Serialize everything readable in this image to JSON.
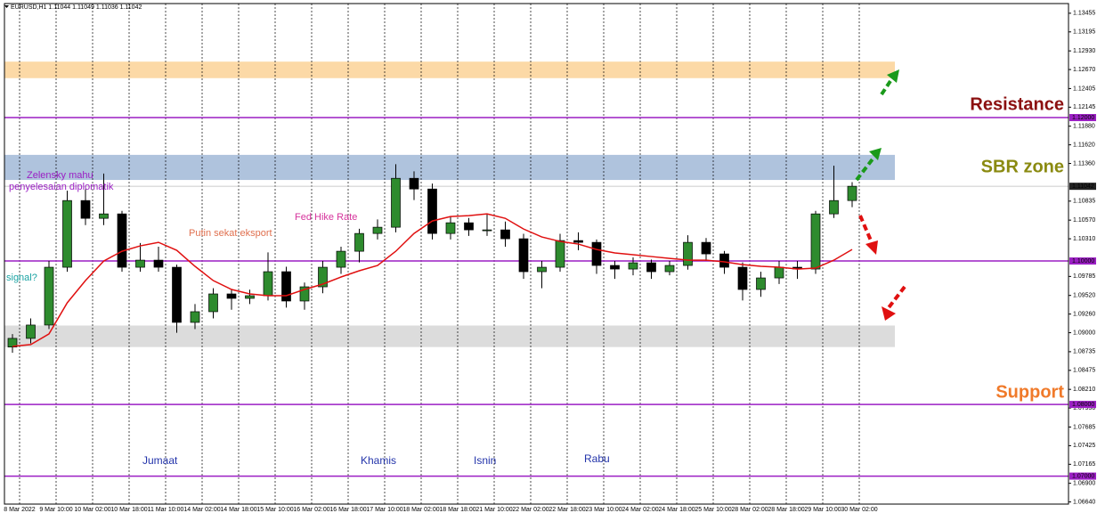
{
  "chart_data": {
    "type": "candlestick",
    "header": "EURUSD,H1  1.11044 1.11049 1.11036 1.11042",
    "ylim": [
      1.0661,
      1.1359
    ],
    "yticks": [
      {
        "value": 1.13455,
        "label": "1.13455"
      },
      {
        "value": 1.13195,
        "label": "1.13195"
      },
      {
        "value": 1.1293,
        "label": "1.12930"
      },
      {
        "value": 1.1267,
        "label": "1.12670"
      },
      {
        "value": 1.12405,
        "label": "1.12405"
      },
      {
        "value": 1.12145,
        "label": "1.12145"
      },
      {
        "value": 1.1188,
        "label": "1.11880"
      },
      {
        "value": 1.1162,
        "label": "1.11620"
      },
      {
        "value": 1.1136,
        "label": "1.11360"
      },
      {
        "value": 1.10835,
        "label": "1.10835"
      },
      {
        "value": 1.1057,
        "label": "1.10570"
      },
      {
        "value": 1.1031,
        "label": "1.10310"
      },
      {
        "value": 1.09785,
        "label": "1.09785"
      },
      {
        "value": 1.0952,
        "label": "1.09520"
      },
      {
        "value": 1.0926,
        "label": "1.09260"
      },
      {
        "value": 1.09,
        "label": "1.09000"
      },
      {
        "value": 1.08735,
        "label": "1.08735"
      },
      {
        "value": 1.08475,
        "label": "1.08475"
      },
      {
        "value": 1.0821,
        "label": "1.08210"
      },
      {
        "value": 1.0795,
        "label": "1.07950"
      },
      {
        "value": 1.07685,
        "label": "1.07685"
      },
      {
        "value": 1.07425,
        "label": "1.07425"
      },
      {
        "value": 1.07165,
        "label": "1.07165"
      },
      {
        "value": 1.069,
        "label": "1.06900"
      },
      {
        "value": 1.0664,
        "label": "1.06640"
      }
    ],
    "x_labels": [
      "8 Mar 2022",
      "9 Mar 10:00",
      "10 Mar 02:00",
      "10 Mar 18:00",
      "11 Mar 10:00",
      "14 Mar 02:00",
      "14 Mar 18:00",
      "15 Mar 10:00",
      "16 Mar 02:00",
      "16 Mar 18:00",
      "17 Mar 10:00",
      "18 Mar 02:00",
      "18 Mar 18:00",
      "21 Mar 10:00",
      "22 Mar 02:00",
      "22 Mar 18:00",
      "23 Mar 10:00",
      "24 Mar 02:00",
      "24 Mar 18:00",
      "25 Mar 10:00",
      "28 Mar 02:00",
      "28 Mar 18:00",
      "29 Mar 10:00",
      "30 Mar 02:00"
    ],
    "up_color": "#2e8b2e",
    "down_color": "#000000",
    "open": [
      1.088,
      1.08921,
      1.09107,
      1.09913,
      1.10843,
      1.10595,
      1.10657,
      1.09913,
      1.10012,
      1.09913,
      1.09144,
      1.09293,
      1.09541,
      1.09479,
      1.09516,
      1.09851,
      1.09442,
      1.0964,
      1.09913,
      1.10136,
      1.10384,
      1.10471,
      1.11153,
      1.11004,
      1.10384,
      1.10533,
      1.10434,
      1.10434,
      1.1031,
      1.09851,
      1.09913,
      1.10285,
      1.1026,
      1.09938,
      1.09888,
      1.09975,
      1.09851,
      1.09938,
      1.1026,
      1.10099,
      1.09913,
      1.09603,
      1.09764,
      1.09913,
      1.09888,
      1.10657,
      1.10843
    ],
    "high": [
      1.0898,
      1.092,
      1.1,
      1.1098,
      1.11,
      1.1122,
      1.107,
      1.1025,
      1.102,
      1.0995,
      1.094,
      1.0962,
      1.096,
      1.096,
      1.1012,
      1.0992,
      1.097,
      1.1,
      1.102,
      1.1045,
      1.1058,
      1.1135,
      1.1125,
      1.1108,
      1.1062,
      1.106,
      1.1065,
      1.1055,
      1.1038,
      1.1,
      1.1038,
      1.104,
      1.103,
      1.1,
      1.1005,
      1.1002,
      1.1,
      1.1036,
      1.1032,
      1.1014,
      1.0998,
      1.0985,
      1.1,
      1.1,
      1.107,
      1.1133,
      1.111
    ],
    "low": [
      1.0872,
      1.0885,
      1.0905,
      1.0985,
      1.105,
      1.105,
      1.0985,
      1.0985,
      1.0985,
      1.09,
      1.0905,
      1.092,
      1.0932,
      1.094,
      1.0945,
      1.0935,
      1.0932,
      1.0955,
      1.0982,
      1.0998,
      1.103,
      1.104,
      1.1085,
      1.103,
      1.103,
      1.1035,
      1.1035,
      1.102,
      1.0975,
      1.0962,
      1.0985,
      1.1015,
      1.0982,
      1.0975,
      1.098,
      1.0975,
      1.098,
      1.0988,
      1.1,
      1.0982,
      1.0945,
      1.095,
      1.0968,
      1.0975,
      1.0982,
      1.106,
      1.1075
    ],
    "close": [
      1.08921,
      1.09107,
      1.09913,
      1.10843,
      1.10595,
      1.10657,
      1.09913,
      1.10012,
      1.09913,
      1.09144,
      1.09293,
      1.09541,
      1.09479,
      1.09516,
      1.09851,
      1.09442,
      1.0964,
      1.09913,
      1.10136,
      1.10384,
      1.10471,
      1.11153,
      1.11004,
      1.10384,
      1.10533,
      1.10434,
      1.10434,
      1.1031,
      1.09851,
      1.09913,
      1.10285,
      1.1026,
      1.09938,
      1.09888,
      1.09975,
      1.09851,
      1.09938,
      1.1026,
      1.10099,
      1.09913,
      1.09603,
      1.09764,
      1.09913,
      1.09888,
      1.10657,
      1.10843,
      1.11042
    ],
    "ma": {
      "color": "#e01010",
      "values": [
        1.0881,
        1.08834,
        1.08983,
        1.09417,
        1.09727,
        1.1,
        1.10136,
        1.10211,
        1.1026,
        1.10149,
        1.09926,
        1.09727,
        1.09603,
        1.09541,
        1.09516,
        1.09516,
        1.09603,
        1.09678,
        1.09777,
        1.09864,
        1.09938,
        1.10136,
        1.10384,
        1.10558,
        1.1062,
        1.10632,
        1.10657,
        1.10595,
        1.10446,
        1.10335,
        1.10273,
        1.10236,
        1.10161,
        1.10112,
        1.10087,
        1.10062,
        1.10037,
        1.10012,
        1.10012,
        1.09988,
        1.0995,
        1.09926,
        1.09913,
        1.09888,
        1.09901,
        1.10012,
        1.10161
      ]
    },
    "current_price": {
      "value": 1.11042,
      "label": "1.11042"
    },
    "levels": [
      {
        "value": 1.12,
        "label": "1.12000"
      },
      {
        "value": 1.1,
        "label": "1.10000"
      },
      {
        "value": 1.08,
        "label": "1.08000"
      },
      {
        "value": 1.07,
        "label": "1.07000"
      }
    ],
    "level_color": "#9b1fc4",
    "zones": [
      {
        "from": 1.1255,
        "to": 1.1278,
        "color": "#fcd9a6"
      },
      {
        "from": 1.1113,
        "to": 1.1148,
        "color": "#afc3dd"
      },
      {
        "from": 1.088,
        "to": 1.091,
        "color": "#dcdcdc"
      }
    ],
    "annotations": {
      "signal": "signal?",
      "zelensky_1": "Zelensky mahu",
      "zelensky_2": "penyelesaian diplomatik",
      "putin": "Putin sekat eksport",
      "fed": "Fed Hike Rate",
      "days": [
        "Jumaat",
        "Khamis",
        "Isnin",
        "Rabu"
      ],
      "resistance": "Resistance",
      "sbr": "SBR zone",
      "support": "Support"
    }
  }
}
